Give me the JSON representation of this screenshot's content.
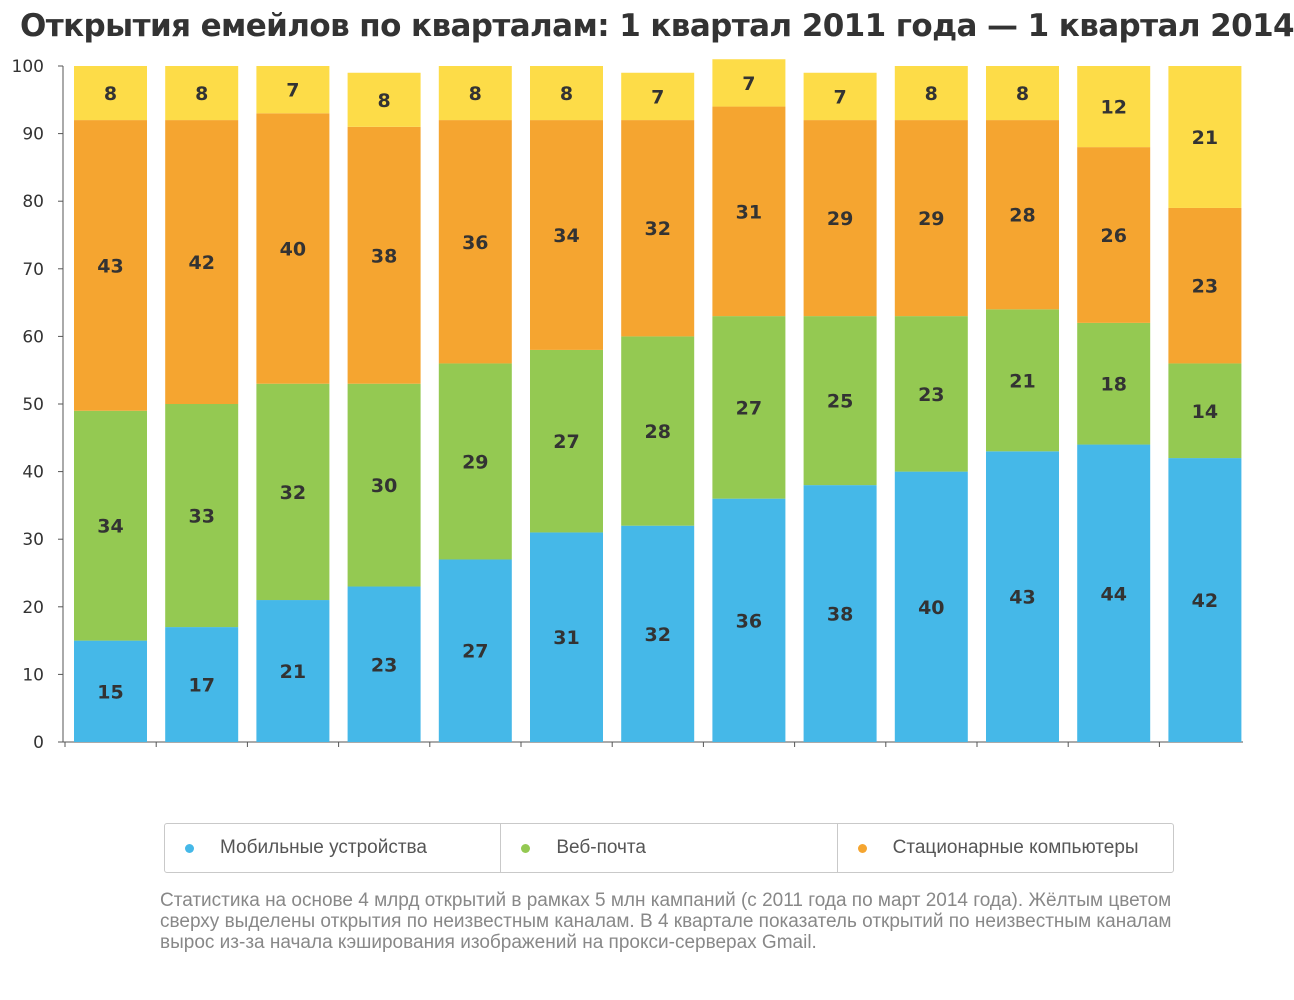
{
  "title": "Открытия емейлов по кварталам: 1 квартал 2011 года — 1 квартал 2014",
  "legend": {
    "items": [
      {
        "label": "Мобильные устройства",
        "color": "#45b8e8"
      },
      {
        "label": "Веб-почта",
        "color": "#94c952"
      },
      {
        "label": "Стационарные компьютеры",
        "color": "#f5a530"
      }
    ]
  },
  "footnote": "Статистика на основе 4 млрд открытий в рамках 5 млн кампаний (с 2011 года по март 2014 года). Жёлтым цветом сверху выделены открытия по неизвестным каналам. В 4 квартале показатель открытий по неизвестным каналам вырос из-за начала кэширования изображений на прокси-серверах Gmail.",
  "chart_data": {
    "type": "bar",
    "stacked": true,
    "title": "Открытия емейлов по кварталам: 1 квартал 2011 года — 1 квартал 2014",
    "xlabel": "",
    "ylabel": "",
    "ylim": [
      0,
      100
    ],
    "yticks": [
      0,
      10,
      20,
      30,
      40,
      50,
      60,
      70,
      80,
      90,
      100
    ],
    "grid": false,
    "legend_position": "bottom",
    "categories": [
      "",
      "",
      "",
      "",
      "",
      "",
      "",
      "",
      "",
      "",
      "",
      "",
      ""
    ],
    "series": [
      {
        "name": "Мобильные устройства",
        "color": "#45b8e8",
        "values": [
          15,
          17,
          21,
          23,
          27,
          31,
          32,
          36,
          38,
          40,
          43,
          44,
          42
        ],
        "labels": [
          "15",
          "17",
          "21",
          "23",
          "27",
          "31",
          "32",
          "36",
          "38",
          "40",
          "43",
          "44",
          "42"
        ]
      },
      {
        "name": "Веб-почта",
        "color": "#94c952",
        "values": [
          34,
          33,
          32,
          30,
          29,
          27,
          28,
          27,
          25,
          23,
          21,
          18,
          14
        ],
        "labels": [
          "34",
          "33",
          "32",
          "30",
          "29",
          "27",
          "28",
          "27",
          "25",
          "23",
          "21",
          "18",
          "14"
        ]
      },
      {
        "name": "Стационарные компьютеры",
        "color": "#f5a530",
        "values": [
          43,
          42,
          40,
          38,
          36,
          34,
          32,
          31,
          29,
          29,
          28,
          26,
          23
        ],
        "labels": [
          "43",
          "42",
          "40",
          "38",
          "36",
          "34",
          "32",
          "31",
          "29",
          "29",
          "28",
          "26",
          "23"
        ]
      },
      {
        "name": "",
        "color": "#fddc48",
        "values": [
          8,
          8,
          7,
          8,
          8,
          8,
          7,
          7,
          7,
          8,
          8,
          12,
          21
        ],
        "labels": [
          "8",
          "8",
          "7",
          "8",
          "8",
          "8",
          "7",
          "7",
          "7",
          "8",
          "8",
          "12",
          "21"
        ]
      }
    ]
  }
}
